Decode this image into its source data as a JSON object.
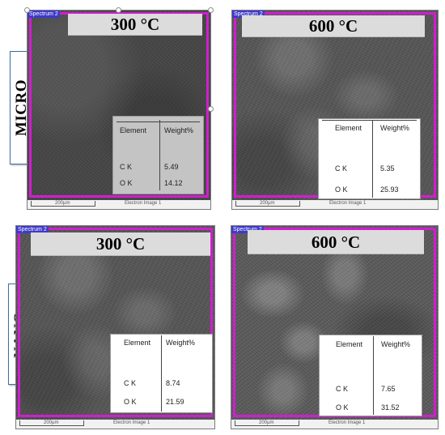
{
  "rows": {
    "micro_label": "MICRO",
    "nano_label": "NANO"
  },
  "panels": {
    "micro_300": {
      "temperature": "300 °C",
      "spectrum": "Spectrum 2",
      "scale": "200µm",
      "image_name": "Electron Image 1",
      "table": {
        "header_element": "Element",
        "header_weight": "Weight%",
        "rows": [
          {
            "element": "C K",
            "weight": "5.49"
          },
          {
            "element": "O K",
            "weight": "14.12"
          }
        ]
      }
    },
    "micro_600": {
      "temperature": "600 °C",
      "spectrum": "Spectrum 2",
      "scale": "200µm",
      "image_name": "Electron Image 1",
      "table": {
        "header_element": "Element",
        "header_weight": "Weight%",
        "rows": [
          {
            "element": "C K",
            "weight": "5.35"
          },
          {
            "element": "O K",
            "weight": "25.93"
          }
        ]
      }
    },
    "nano_300": {
      "temperature": "300 °C",
      "spectrum": "Spectrum 2",
      "scale": "200µm",
      "image_name": "Electron Image 1",
      "table": {
        "header_element": "Element",
        "header_weight": "Weight%",
        "rows": [
          {
            "element": "C K",
            "weight": "8.74"
          },
          {
            "element": "O K",
            "weight": "21.59"
          }
        ]
      }
    },
    "nano_600": {
      "temperature": "600 °C",
      "spectrum": "Spectrum 2",
      "scale": "200µm",
      "image_name": "Electron Image 1",
      "table": {
        "header_element": "Element",
        "header_weight": "Weight%",
        "rows": [
          {
            "element": "C K",
            "weight": "7.65"
          },
          {
            "element": "O K",
            "weight": "31.52"
          }
        ]
      }
    }
  },
  "colors": {
    "frame": "#d01ed0",
    "spectrum_tag": "#3e3ac9",
    "temperature_banner": "#dcdcdc"
  }
}
